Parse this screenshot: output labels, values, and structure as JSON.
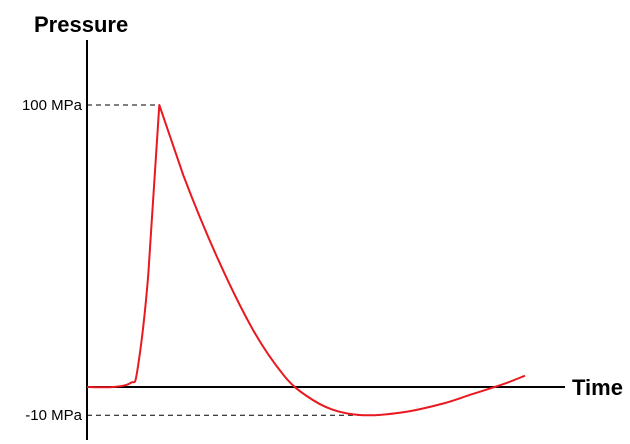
{
  "chart_data": {
    "type": "line",
    "ylabel": "Pressure",
    "xlabel": "Time",
    "y_ticks": [
      {
        "value": 100,
        "label": "100 MPa"
      },
      {
        "value": -10,
        "label": "-10 MPa"
      }
    ],
    "ylim": [
      -10,
      100
    ],
    "baseline": 0,
    "grid": false,
    "series": [
      {
        "color": "#e8191f",
        "points": [
          [
            0.0,
            0
          ],
          [
            0.06,
            0
          ],
          [
            0.1,
            1.5
          ],
          [
            0.115,
            6
          ],
          [
            0.14,
            40
          ],
          [
            0.165,
            100
          ],
          [
            0.22,
            75
          ],
          [
            0.3,
            45
          ],
          [
            0.38,
            20
          ],
          [
            0.45,
            4
          ],
          [
            0.5,
            -3
          ],
          [
            0.56,
            -8
          ],
          [
            0.63,
            -10
          ],
          [
            0.72,
            -9
          ],
          [
            0.81,
            -6
          ],
          [
            0.88,
            -2.5
          ],
          [
            0.95,
            1
          ],
          [
            1.0,
            4
          ]
        ]
      }
    ],
    "axis_color": "#000000",
    "guide_style": "dashed"
  }
}
